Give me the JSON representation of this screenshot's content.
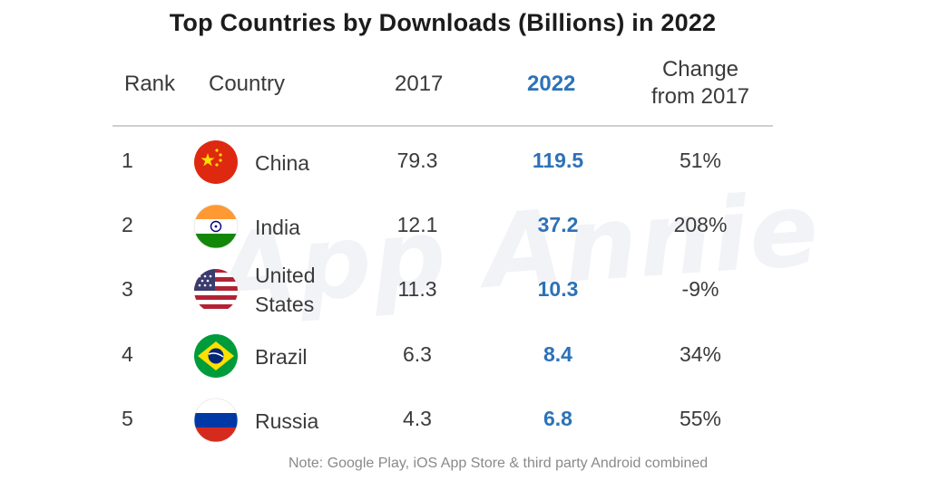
{
  "title": "Top Countries by Downloads (Billions) in 2022",
  "watermark": "App Annie",
  "headers": {
    "rank": "Rank",
    "country": "Country",
    "y2017": "2017",
    "y2022": "2022",
    "change_line1": "Change",
    "change_line2": "from 2017"
  },
  "rows": [
    {
      "rank": "1",
      "country": "China",
      "flag": "china-flag",
      "v2017": "79.3",
      "v2022": "119.5",
      "change": "51%"
    },
    {
      "rank": "2",
      "country": "India",
      "flag": "india-flag",
      "v2017": "12.1",
      "v2022": "37.2",
      "change": "208%"
    },
    {
      "rank": "3",
      "country_line1": "United",
      "country_line2": "States",
      "flag": "usa-flag",
      "v2017": "11.3",
      "v2022": "10.3",
      "change": "-9%"
    },
    {
      "rank": "4",
      "country": "Brazil",
      "flag": "brazil-flag",
      "v2017": "6.3",
      "v2022": "8.4",
      "change": "34%"
    },
    {
      "rank": "5",
      "country": "Russia",
      "flag": "russia-flag",
      "v2017": "4.3",
      "v2022": "6.8",
      "change": "55%"
    }
  ],
  "note": "Note: Google Play, iOS App Store & third party Android combined",
  "colors": {
    "accent": "#2c72b8",
    "text": "#3a3a3a",
    "divider": "#cfcfcf"
  },
  "chart_data": {
    "type": "table",
    "title": "Top Countries by Downloads (Billions) in 2022",
    "columns": [
      "Rank",
      "Country",
      "2017",
      "2022",
      "Change from 2017"
    ],
    "rows": [
      [
        1,
        "China",
        79.3,
        119.5,
        "51%"
      ],
      [
        2,
        "India",
        12.1,
        37.2,
        "208%"
      ],
      [
        3,
        "United States",
        11.3,
        10.3,
        "-9%"
      ],
      [
        4,
        "Brazil",
        6.3,
        8.4,
        "34%"
      ],
      [
        5,
        "Russia",
        4.3,
        6.8,
        "55%"
      ]
    ]
  }
}
